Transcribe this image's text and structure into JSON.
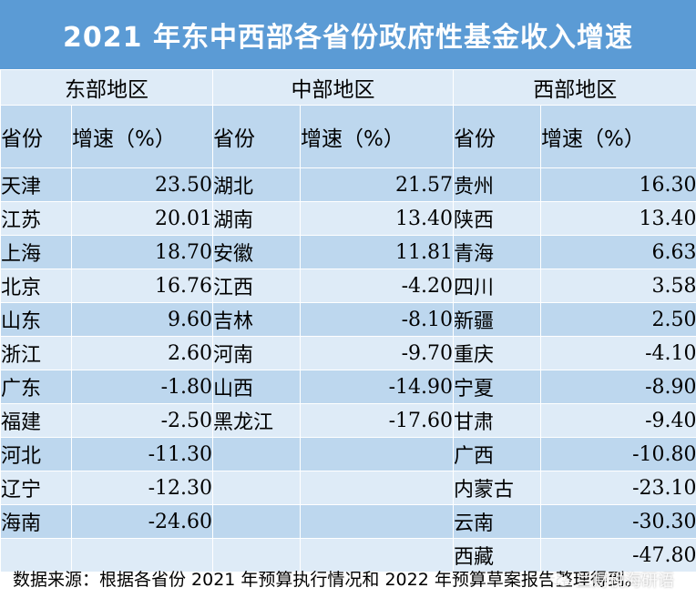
{
  "title": "2021 年东中西部各省份政府性基金收入增速",
  "regions": [
    "东部地区",
    "中部地区",
    "西部地区"
  ],
  "header": {
    "province": "省份",
    "growth": "增速（%）"
  },
  "rows": [
    [
      {
        "p": "天津",
        "v": "23.50"
      },
      {
        "p": "湖北",
        "v": "21.57"
      },
      {
        "p": "贵州",
        "v": "16.30"
      }
    ],
    [
      {
        "p": "江苏",
        "v": "20.01"
      },
      {
        "p": "湖南",
        "v": "13.40"
      },
      {
        "p": "陕西",
        "v": "13.40"
      }
    ],
    [
      {
        "p": "上海",
        "v": "18.70"
      },
      {
        "p": "安徽",
        "v": "11.81"
      },
      {
        "p": "青海",
        "v": "6.63"
      }
    ],
    [
      {
        "p": "北京",
        "v": "16.76"
      },
      {
        "p": "江西",
        "v": "-4.20"
      },
      {
        "p": "四川",
        "v": "3.58"
      }
    ],
    [
      {
        "p": "山东",
        "v": "9.60"
      },
      {
        "p": "吉林",
        "v": "-8.10"
      },
      {
        "p": "新疆",
        "v": "2.50"
      }
    ],
    [
      {
        "p": "浙江",
        "v": "2.60"
      },
      {
        "p": "河南",
        "v": "-9.70"
      },
      {
        "p": "重庆",
        "v": "-4.10"
      }
    ],
    [
      {
        "p": "广东",
        "v": "-1.80"
      },
      {
        "p": "山西",
        "v": "-14.90"
      },
      {
        "p": "宁夏",
        "v": "-8.90"
      }
    ],
    [
      {
        "p": "福建",
        "v": "-2.50"
      },
      {
        "p": "黑龙江",
        "v": "-17.60"
      },
      {
        "p": "甘肃",
        "v": "-9.40"
      }
    ],
    [
      {
        "p": "河北",
        "v": "-11.30"
      },
      {
        "p": "",
        "v": ""
      },
      {
        "p": "广西",
        "v": "-10.80"
      }
    ],
    [
      {
        "p": "辽宁",
        "v": "-12.30"
      },
      {
        "p": "",
        "v": ""
      },
      {
        "p": "内蒙古",
        "v": "-23.10"
      }
    ],
    [
      {
        "p": "海南",
        "v": "-24.60"
      },
      {
        "p": "",
        "v": ""
      },
      {
        "p": "云南",
        "v": "-30.30"
      }
    ],
    [
      {
        "p": "",
        "v": ""
      },
      {
        "p": "",
        "v": ""
      },
      {
        "p": "西藏",
        "v": "-47.80"
      }
    ]
  ],
  "footnote": "数据来源：根据各省份 2021 年预算执行情况和 2022 年预算草案报告整理得到。",
  "watermark": "兰财税海研语",
  "colors": {
    "title_bg": "#5b9bd5",
    "dark_cell": "#bdd7ee",
    "light_cell": "#deebf7"
  }
}
